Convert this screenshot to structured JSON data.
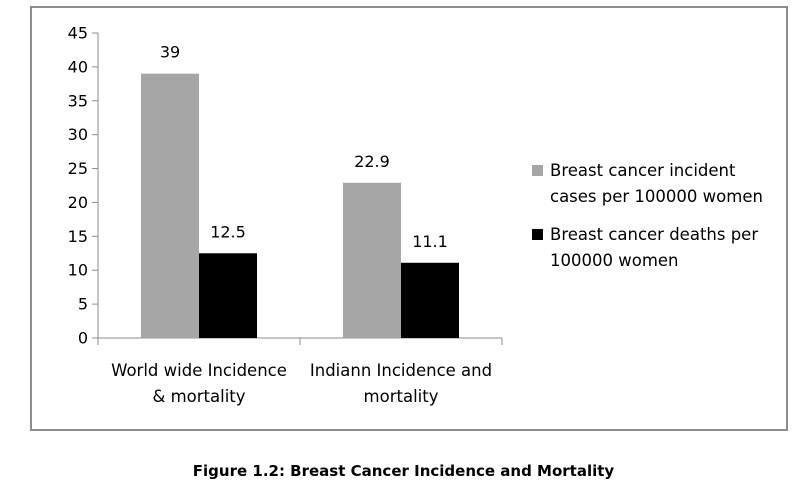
{
  "chart_data": {
    "type": "bar",
    "categories": [
      [
        "World wide Incidence",
        "& mortality"
      ],
      [
        "Indiann Incidence and",
        "mortality"
      ]
    ],
    "series": [
      {
        "name": [
          "Breast cancer incident",
          "cases per 100000 women"
        ],
        "values": [
          39,
          22.9
        ],
        "color": "#a6a6a6"
      },
      {
        "name": [
          "Breast cancer deaths per",
          "100000 women"
        ],
        "values": [
          12.5,
          11.1
        ],
        "color": "#000000"
      }
    ],
    "data_labels": [
      [
        "39",
        "22.9"
      ],
      [
        "12.5",
        "11.1"
      ]
    ],
    "ylim": [
      0,
      45
    ],
    "y_ticks": [
      0,
      5,
      10,
      15,
      20,
      25,
      30,
      35,
      40,
      45
    ],
    "grid": false,
    "legend_position": "right"
  },
  "caption": "Figure 1.2: Breast Cancer Incidence and Mortality"
}
